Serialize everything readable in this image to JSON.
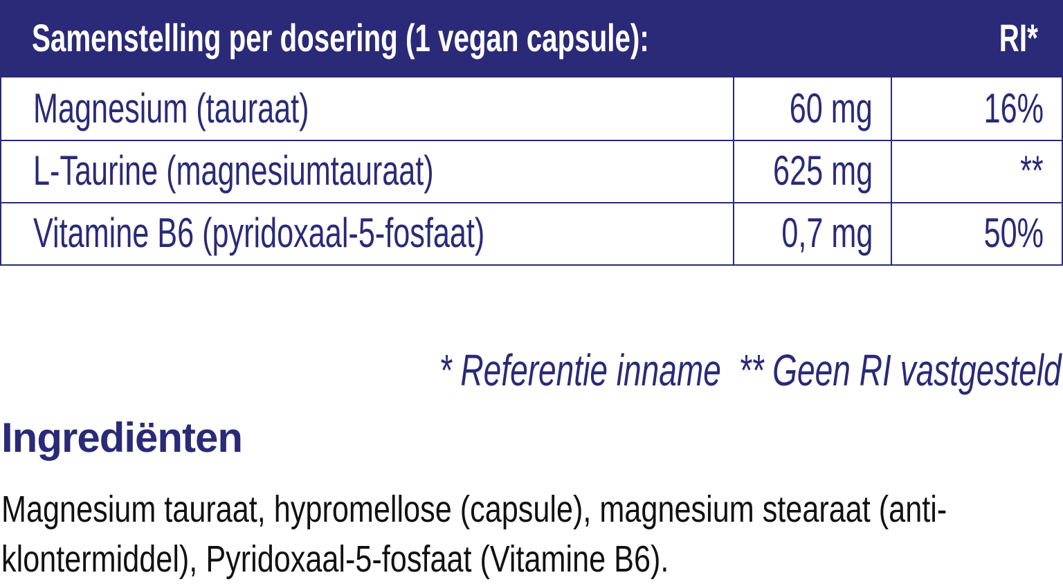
{
  "table": {
    "header": {
      "title": "Samenstelling per dosering (1 vegan capsule):",
      "ri": "RI*"
    },
    "rows": [
      {
        "name": "Magnesium (tauraat)",
        "amount": "60 mg",
        "ri": "16%"
      },
      {
        "name": "L-Taurine (magnesiumtauraat)",
        "amount": "625 mg",
        "ri": "**"
      },
      {
        "name": "Vitamine B6 (pyridoxaal-5-fosfaat)",
        "amount": "0,7 mg",
        "ri": "50%"
      }
    ],
    "footnote": "* Referentie inname  ** Geen RI vastgesteld"
  },
  "ingredients": {
    "heading": "Ingrediënten",
    "line1": "Magnesium tauraat, hypromellose (capsule), magnesium stearaat (anti-",
    "line2": "klontermiddel), Pyridoxaal-5-fosfaat (Vitamine B6)."
  },
  "colors": {
    "brand": "#2a2a78",
    "header_text": "#ffffff"
  }
}
